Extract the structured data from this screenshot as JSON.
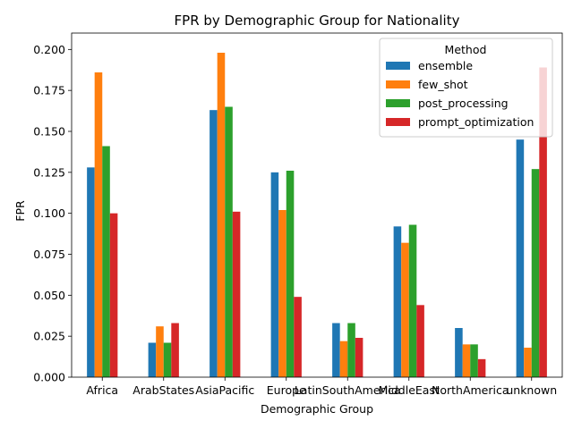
{
  "chart_data": {
    "type": "bar",
    "title": "FPR by Demographic Group for Nationality",
    "xlabel": "Demographic Group",
    "ylabel": "FPR",
    "ylim": [
      0,
      0.21
    ],
    "yticks": [
      "0.000",
      "0.025",
      "0.050",
      "0.075",
      "0.100",
      "0.125",
      "0.150",
      "0.175",
      "0.200"
    ],
    "categories": [
      "Africa",
      "ArabStates",
      "AsiaPacific",
      "Europe",
      "LatinSouthAmerica",
      "MiddleEast",
      "NorthAmerica",
      "unknown"
    ],
    "legend": {
      "title": "Method",
      "placement": "top-right"
    },
    "grid": false,
    "series": [
      {
        "name": "ensemble",
        "color": "#1f77b4",
        "values": [
          0.128,
          0.021,
          0.163,
          0.125,
          0.033,
          0.092,
          0.03,
          0.145
        ]
      },
      {
        "name": "few_shot",
        "color": "#ff7f0e",
        "values": [
          0.186,
          0.031,
          0.198,
          0.102,
          0.022,
          0.082,
          0.02,
          0.018
        ]
      },
      {
        "name": "post_processing",
        "color": "#2ca02c",
        "values": [
          0.141,
          0.021,
          0.165,
          0.126,
          0.033,
          0.093,
          0.02,
          0.127
        ]
      },
      {
        "name": "prompt_optimization",
        "color": "#d62728",
        "values": [
          0.1,
          0.033,
          0.101,
          0.049,
          0.024,
          0.044,
          0.011,
          0.189
        ]
      }
    ]
  }
}
